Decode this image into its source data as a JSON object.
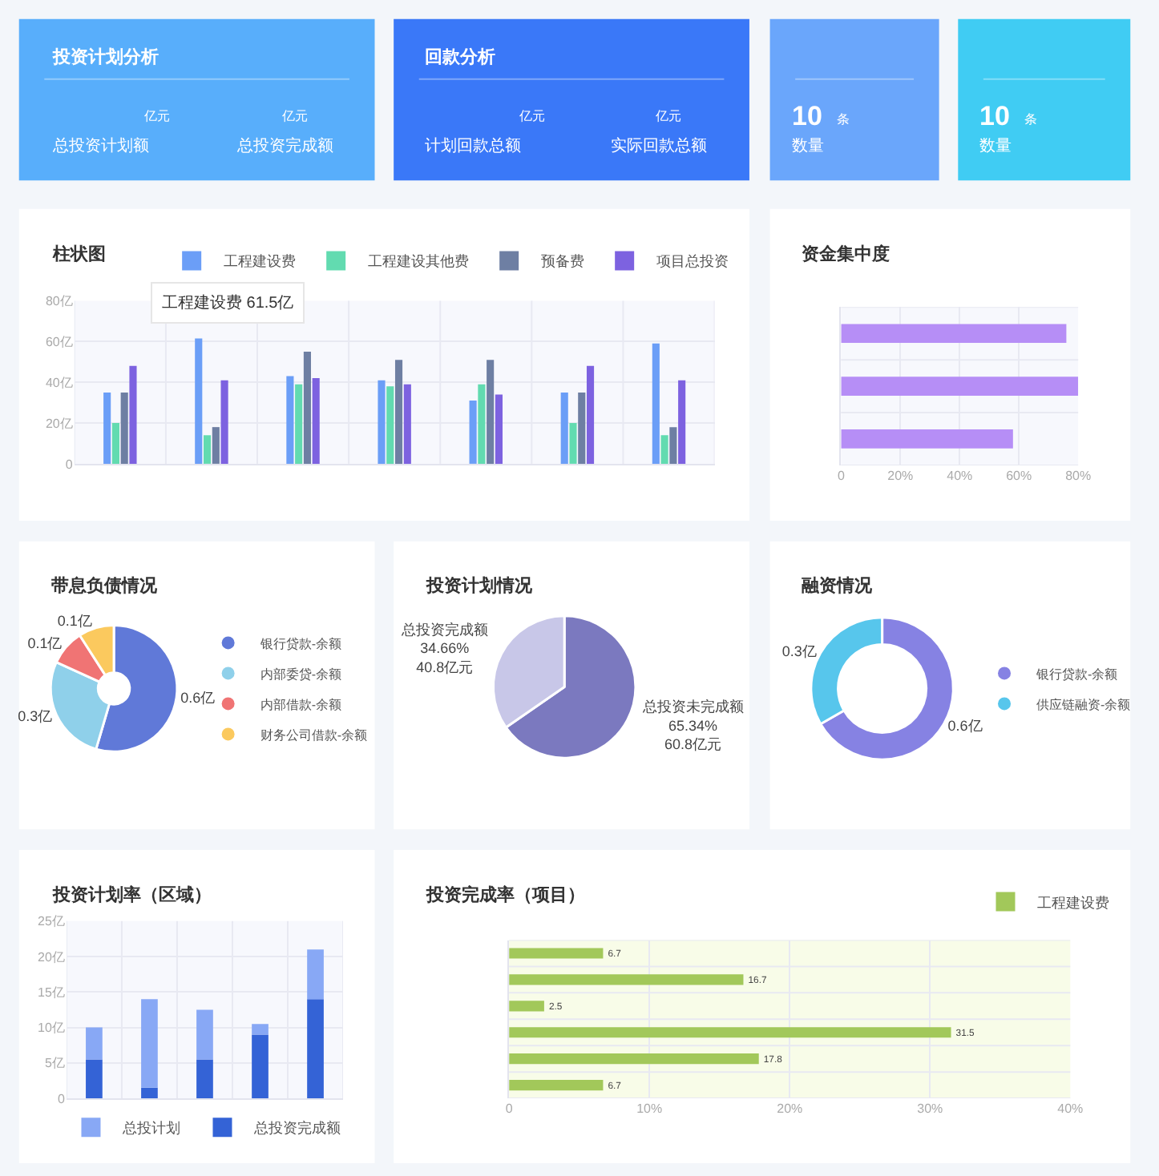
{
  "chart_data": [
    {
      "type": "other",
      "title": "投资计划分析",
      "annotations": [
        "亿元",
        "总投资计划额",
        "亿元",
        "总投资完成额"
      ]
    },
    {
      "type": "other",
      "title": "回款分析",
      "annotations": [
        "亿元",
        "计划回款总额",
        "亿元",
        "实际回款总额"
      ]
    },
    {
      "type": "other",
      "annotations": [
        "10",
        "条",
        "数量"
      ]
    },
    {
      "type": "other",
      "annotations": [
        "10",
        "条",
        "数量"
      ]
    },
    {
      "type": "bar",
      "title": "柱状图",
      "categories": [
        null,
        null,
        null,
        null,
        null,
        null,
        null
      ],
      "ylim": [
        0,
        80
      ],
      "yticks": [
        0,
        {
          "value": 20,
          "label": "20亿"
        },
        {
          "value": 40,
          "label": "40亿"
        },
        {
          "value": 60,
          "label": "60亿"
        },
        {
          "value": 80,
          "label": "80亿"
        }
      ],
      "grid": true,
      "legend": "top right",
      "annotations": [
        "工程建设费 61.5亿"
      ],
      "series": [
        {
          "name": "工程建设费",
          "color": "#6b9ef7",
          "values": [
            35,
            61.5,
            43,
            41,
            31,
            35,
            59
          ]
        },
        {
          "name": "工程建设其他费",
          "color": "#62dbb0",
          "values": [
            20,
            14,
            39,
            38,
            39,
            20,
            14
          ]
        },
        {
          "name": "预备费",
          "color": "#6e7fa3",
          "values": [
            35,
            18,
            55,
            51,
            51,
            35,
            18
          ]
        },
        {
          "name": "项目总投资",
          "color": "#7d62e0",
          "values": [
            48,
            41,
            42,
            39,
            34,
            48,
            41
          ]
        }
      ]
    },
    {
      "type": "bar",
      "title": "资金集中度",
      "orientation": "horizontal",
      "categories": [
        null,
        null,
        null
      ],
      "values": [
        76,
        80,
        58
      ],
      "color": "#b68ef6",
      "xlim": [
        0,
        80
      ],
      "xticks": [
        0,
        {
          "value": 20,
          "label": "20%"
        },
        {
          "value": 40,
          "label": "40%"
        },
        {
          "value": 60,
          "label": "60%"
        },
        {
          "value": 80,
          "label": "80%"
        }
      ],
      "grid": true
    },
    {
      "type": "donut",
      "title": "带息负债情况",
      "categories": [
        "银行贷款-余额",
        "内部委贷-余额",
        "内部借款-余额",
        "财务公司借款-余额"
      ],
      "values": [
        0.6,
        0.3,
        0.1,
        0.1
      ],
      "value_labels": [
        "0.6亿",
        "0.3亿",
        "0.1亿",
        "0.1亿"
      ],
      "colors": [
        "#6079d8",
        "#8fd0ea",
        "#f07474",
        "#fbc95e"
      ],
      "legend": "right"
    },
    {
      "type": "pie",
      "title": "投资计划情况",
      "categories": [
        "总投资未完成额",
        "总投资完成额"
      ],
      "values": [
        65.34,
        34.66
      ],
      "value_labels": [
        "65.34%\n60.8亿元",
        "34.66%\n40.8亿元"
      ],
      "colors": [
        "#7b79bf",
        "#c8c7e8"
      ]
    },
    {
      "type": "donut",
      "title": "融资情况",
      "categories": [
        "银行贷款-余额",
        "供应链融资-余额"
      ],
      "values": [
        0.6,
        0.3
      ],
      "value_labels": [
        "0.6亿",
        "0.3亿"
      ],
      "colors": [
        "#8682e3",
        "#57c6ec"
      ],
      "legend": "right"
    },
    {
      "type": "bar",
      "title": "投资计划率（区域）",
      "categories": [
        null,
        null,
        null,
        null,
        null
      ],
      "stacked": true,
      "ylim": [
        0,
        25
      ],
      "yticks": [
        0,
        {
          "value": 5,
          "label": "5亿"
        },
        {
          "value": 10,
          "label": "10亿"
        },
        {
          "value": 15,
          "label": "15亿"
        },
        {
          "value": 20,
          "label": "20亿"
        },
        {
          "value": 25,
          "label": "25亿"
        }
      ],
      "grid": true,
      "legend": "bottom",
      "series": [
        {
          "name": "总投资完成额",
          "color": "#3463d6",
          "values": [
            5.5,
            1.5,
            5.5,
            9,
            14
          ]
        },
        {
          "name": "总投计划",
          "color": "#88a8f5",
          "values": [
            4.5,
            12.5,
            7,
            1.5,
            7
          ]
        }
      ]
    },
    {
      "type": "bar",
      "title": "投资完成率（项目）",
      "orientation": "horizontal",
      "categories": [
        null,
        null,
        null,
        null,
        null,
        null
      ],
      "xlim": [
        0,
        40
      ],
      "xticks": [
        0,
        {
          "value": 10,
          "label": "10%"
        },
        {
          "value": 20,
          "label": "20%"
        },
        {
          "value": 30,
          "label": "30%"
        },
        {
          "value": 40,
          "label": "40%"
        }
      ],
      "grid": true,
      "legend": "top right",
      "data_labels": true,
      "series": [
        {
          "name": "工程建设费",
          "color": "#a2c85a",
          "values": [
            6.7,
            16.7,
            2.5,
            31.5,
            17.8,
            6.7
          ]
        }
      ]
    }
  ]
}
